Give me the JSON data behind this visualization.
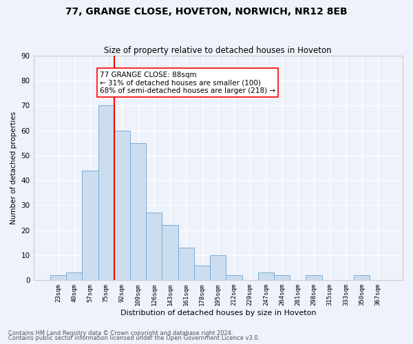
{
  "title": "77, GRANGE CLOSE, HOVETON, NORWICH, NR12 8EB",
  "subtitle": "Size of property relative to detached houses in Hoveton",
  "xlabel": "Distribution of detached houses by size in Hoveton",
  "ylabel": "Number of detached properties",
  "bar_labels": [
    "23sqm",
    "40sqm",
    "57sqm",
    "75sqm",
    "92sqm",
    "109sqm",
    "126sqm",
    "143sqm",
    "161sqm",
    "178sqm",
    "195sqm",
    "212sqm",
    "229sqm",
    "247sqm",
    "264sqm",
    "281sqm",
    "298sqm",
    "315sqm",
    "333sqm",
    "350sqm",
    "367sqm"
  ],
  "bar_values": [
    2,
    3,
    44,
    70,
    60,
    55,
    27,
    22,
    13,
    6,
    10,
    2,
    0,
    3,
    2,
    0,
    2,
    0,
    0,
    2,
    0
  ],
  "bar_color": "#ccddf0",
  "bar_edge_color": "#7aadd4",
  "background_color": "#eef2fa",
  "grid_color": "#ffffff",
  "vline_color": "red",
  "vline_x_index": 3.5,
  "annotation_text": "77 GRANGE CLOSE: 88sqm\n← 31% of detached houses are smaller (100)\n68% of semi-detached houses are larger (218) →",
  "annotation_box_color": "white",
  "annotation_box_edge": "red",
  "ylim": [
    0,
    90
  ],
  "yticks": [
    0,
    10,
    20,
    30,
    40,
    50,
    60,
    70,
    80,
    90
  ],
  "footer_line1": "Contains HM Land Registry data © Crown copyright and database right 2024.",
  "footer_line2": "Contains public sector information licensed under the Open Government Licence v3.0."
}
